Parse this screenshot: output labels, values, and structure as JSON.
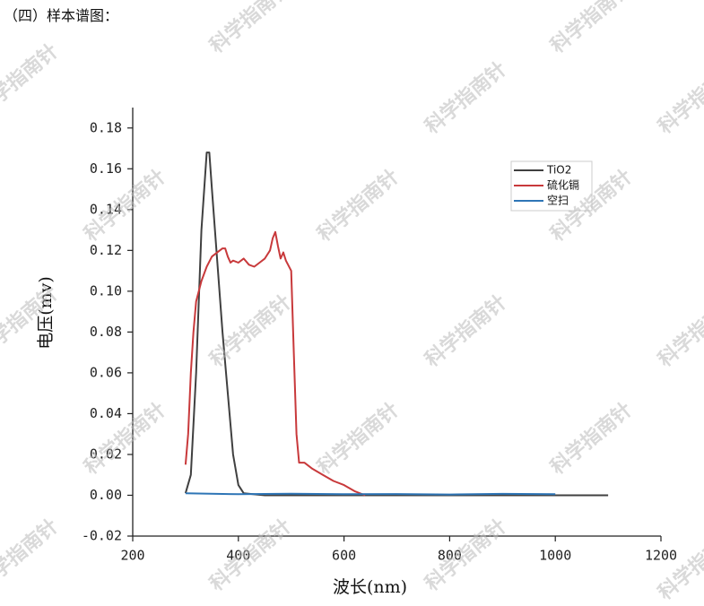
{
  "heading": "（四）样本谱图：",
  "watermark": "科学指南针",
  "chart_data": {
    "type": "line",
    "x_label": "波长(nm)",
    "y_label": "电压(mv)",
    "xlim": [
      200,
      1200
    ],
    "xticks": [
      200,
      400,
      600,
      800,
      1000,
      1200
    ],
    "ylim": [
      -0.02,
      0.19
    ],
    "yticks": [
      {
        "value": -0.02,
        "label": "-0.02"
      },
      {
        "value": 0,
        "label": "0.00"
      },
      0.02,
      0.04,
      0.06,
      0.08,
      {
        "value": 0.1,
        "label": "0.10"
      },
      0.12,
      0.14,
      0.16,
      0.18
    ],
    "legend": "upper right",
    "series": [
      {
        "name": "TiO2",
        "color": "#404040",
        "x": [
          300,
          310,
          320,
          330,
          340,
          345,
          350,
          360,
          370,
          380,
          390,
          400,
          410,
          450,
          1100
        ],
        "values": [
          0.001,
          0.01,
          0.06,
          0.13,
          0.168,
          0.168,
          0.15,
          0.115,
          0.08,
          0.05,
          0.02,
          0.005,
          0.001,
          0,
          0
        ]
      },
      {
        "name": "硫化镉",
        "color": "#c8393b",
        "x": [
          300,
          305,
          310,
          315,
          320,
          330,
          340,
          350,
          360,
          370,
          375,
          380,
          385,
          390,
          400,
          410,
          420,
          430,
          440,
          450,
          460,
          465,
          470,
          475,
          480,
          485,
          490,
          500,
          505,
          510,
          515,
          525,
          540,
          560,
          580,
          600,
          620,
          640
        ],
        "values": [
          0.015,
          0.03,
          0.06,
          0.08,
          0.095,
          0.105,
          0.112,
          0.117,
          0.119,
          0.121,
          0.121,
          0.117,
          0.114,
          0.115,
          0.114,
          0.116,
          0.113,
          0.112,
          0.114,
          0.116,
          0.12,
          0.126,
          0.129,
          0.122,
          0.116,
          0.119,
          0.115,
          0.11,
          0.07,
          0.03,
          0.016,
          0.016,
          0.013,
          0.01,
          0.007,
          0.005,
          0.002,
          0
        ]
      },
      {
        "name": "空扫",
        "color": "#2e75b6",
        "x": [
          300,
          400,
          500,
          600,
          700,
          800,
          900,
          1000
        ],
        "values": [
          0.001,
          0.0005,
          0.0008,
          0.0005,
          0.0006,
          0.0004,
          0.0007,
          0.0005
        ]
      }
    ]
  }
}
